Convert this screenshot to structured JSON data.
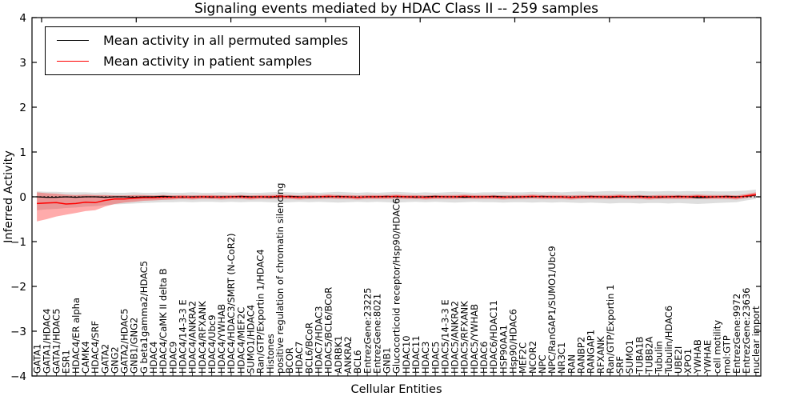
{
  "title": "Signaling events mediated by HDAC Class II -- 259 samples",
  "legend": {
    "items": [
      {
        "label": "Mean activity in all permuted samples",
        "color": "#000000"
      },
      {
        "label": "Mean activity in patient samples",
        "color": "#ff0000"
      }
    ]
  },
  "chart_data": {
    "type": "line",
    "title": "Signaling events mediated by HDAC Class II -- 259 samples",
    "xlabel": "Cellular Entities",
    "ylabel": "Inferred Activity",
    "ylim": [
      -4,
      4
    ],
    "yticks": [
      -4,
      -3,
      -2,
      -1,
      0,
      1,
      2,
      3,
      4
    ],
    "grid": false,
    "legend_position": "upper left",
    "zero_line": {
      "y": 0,
      "style": "dotted",
      "color": "#000000"
    },
    "categories": [
      "GATA1",
      "GATA1/HDAC4",
      "GATA1/HDAC5",
      "ESR1",
      "HDAC4/ER alpha",
      "CAMK4",
      "HDAC4/SRF",
      "GATA2",
      "GNG2",
      "GATA2/HDAC5",
      "GNB1/GNG2",
      "G beta1gamma2/HDAC5",
      "HDAC4",
      "HDAC4/CaMK II delta B",
      "HDAC9",
      "HDAC4/14-3-3 E",
      "HDAC4/ANKRA2",
      "HDAC4/RFXANK",
      "HDAC4/Ubc9",
      "HDAC4/YWHAB",
      "HDAC4/HDAC3/SMRT (N-CoR2)",
      "HDAC4/MEF2C",
      "SUMO1/HDAC4",
      "Ran/GTP/Exportin 1/HDAC4",
      "Histones",
      "positive regulation of chromatin silencing",
      "BCOR",
      "HDAC7",
      "BCL6/BCoR",
      "HDAC7/HDAC3",
      "HDAC5/BCL6/BCoR",
      "ADRBK1",
      "ANKRA2",
      "BCL6",
      "EntrezGene:23225",
      "EntrezGene:8021",
      "GNB1",
      "Glucocorticoid receptor/Hsp90/HDAC6",
      "HDAC10",
      "HDAC11",
      "HDAC3",
      "HDAC5",
      "HDAC5/14-3-3 E",
      "HDAC5/ANKRA2",
      "HDAC5/RFXANK",
      "HDAC5/YWHAB",
      "HDAC6",
      "HDAC6/HDAC11",
      "HSP90AA1",
      "Hsp90/HDAC6",
      "MEF2C",
      "NCOR2",
      "NPC",
      "NPC/RanGAP1/SUMO1/Ubc9",
      "NR3C1",
      "RAN",
      "RANBP2",
      "RANGAP1",
      "RFXANK",
      "Ran/GTP/Exportin 1",
      "SRF",
      "SUMO1",
      "TUBA1B",
      "TUBB2A",
      "Tubulin",
      "Tubulin/HDAC6",
      "UBE2I",
      "XPO1",
      "YWHAB",
      "YWHAE",
      "cell motility",
      "mol:GTP",
      "EntrezGene:9972",
      "EntrezGene:23636",
      "nuclear import"
    ],
    "series": [
      {
        "name": "Mean activity in all permuted samples",
        "color": "#000000",
        "values": [
          0.0,
          -0.01,
          -0.01,
          0.0,
          -0.01,
          0.0,
          0.0,
          -0.01,
          0.0,
          0.0,
          -0.01,
          0.0,
          0.0,
          0.01,
          0.0,
          -0.01,
          0.0,
          0.0,
          -0.01,
          0.0,
          0.0,
          0.01,
          0.0,
          0.0,
          -0.01,
          0.0,
          0.01,
          0.0,
          -0.01,
          0.0,
          0.0,
          0.01,
          0.0,
          -0.01,
          0.0,
          0.0,
          0.01,
          0.0,
          0.0,
          -0.01,
          0.0,
          0.01,
          0.0,
          0.0,
          -0.01,
          0.0,
          0.0,
          0.01,
          0.0,
          -0.01,
          0.0,
          0.0,
          0.01,
          0.0,
          0.0,
          -0.01,
          0.0,
          0.01,
          0.0,
          -0.01,
          0.0,
          0.0,
          0.01,
          0.0,
          -0.01,
          0.0,
          0.01,
          0.0,
          -0.02,
          -0.01,
          0.0,
          0.01,
          0.0,
          0.01,
          0.04
        ]
      },
      {
        "name": "Mean activity in patient samples",
        "color": "#ff0000",
        "values": [
          -0.15,
          -0.14,
          -0.13,
          -0.16,
          -0.15,
          -0.12,
          -0.13,
          -0.08,
          -0.05,
          -0.05,
          -0.03,
          -0.02,
          -0.02,
          -0.01,
          -0.01,
          0.0,
          -0.01,
          0.0,
          0.0,
          -0.01,
          0.0,
          0.0,
          -0.01,
          0.0,
          0.0,
          0.01,
          0.0,
          -0.01,
          0.0,
          0.0,
          0.01,
          0.0,
          0.0,
          -0.01,
          0.0,
          0.0,
          0.0,
          0.01,
          0.0,
          0.0,
          -0.01,
          0.0,
          0.0,
          0.0,
          0.01,
          0.0,
          0.0,
          0.0,
          -0.01,
          0.0,
          0.0,
          0.01,
          0.0,
          0.0,
          0.0,
          -0.01,
          0.0,
          0.0,
          0.0,
          0.0,
          0.01,
          0.0,
          0.0,
          -0.01,
          0.0,
          0.0,
          0.0,
          0.0,
          0.01,
          0.0,
          0.0,
          0.0,
          -0.01,
          0.02,
          0.05
        ]
      }
    ],
    "bands": [
      {
        "name": "permuted-std-band",
        "color": "#000000",
        "opacity": 0.13,
        "upper": [
          0.12,
          0.11,
          0.11,
          0.1,
          0.1,
          0.1,
          0.09,
          0.1,
          0.09,
          0.09,
          0.1,
          0.09,
          0.09,
          0.1,
          0.09,
          0.09,
          0.1,
          0.09,
          0.09,
          0.1,
          0.09,
          0.1,
          0.09,
          0.09,
          0.1,
          0.11,
          0.1,
          0.09,
          0.1,
          0.09,
          0.1,
          0.11,
          0.1,
          0.09,
          0.1,
          0.09,
          0.1,
          0.11,
          0.1,
          0.09,
          0.1,
          0.09,
          0.1,
          0.11,
          0.1,
          0.09,
          0.1,
          0.1,
          0.11,
          0.1,
          0.1,
          0.11,
          0.1,
          0.11,
          0.1,
          0.11,
          0.12,
          0.11,
          0.12,
          0.13,
          0.12,
          0.12,
          0.13,
          0.12,
          0.12,
          0.13,
          0.12,
          0.13,
          0.12,
          0.13,
          0.12,
          0.12,
          0.13,
          0.14,
          0.16
        ],
        "lower": [
          -0.3,
          -0.28,
          -0.27,
          -0.25,
          -0.24,
          -0.22,
          -0.21,
          -0.19,
          -0.17,
          -0.16,
          -0.15,
          -0.14,
          -0.13,
          -0.12,
          -0.12,
          -0.11,
          -0.12,
          -0.11,
          -0.11,
          -0.12,
          -0.11,
          -0.12,
          -0.11,
          -0.11,
          -0.12,
          -0.13,
          -0.12,
          -0.11,
          -0.12,
          -0.11,
          -0.12,
          -0.13,
          -0.12,
          -0.11,
          -0.12,
          -0.11,
          -0.12,
          -0.13,
          -0.12,
          -0.11,
          -0.12,
          -0.11,
          -0.12,
          -0.13,
          -0.12,
          -0.11,
          -0.12,
          -0.12,
          -0.13,
          -0.12,
          -0.12,
          -0.13,
          -0.12,
          -0.13,
          -0.12,
          -0.13,
          -0.14,
          -0.13,
          -0.14,
          -0.15,
          -0.14,
          -0.14,
          -0.15,
          -0.14,
          -0.14,
          -0.15,
          -0.14,
          -0.15,
          -0.16,
          -0.15,
          -0.14,
          -0.13,
          -0.12,
          -0.08,
          -0.05
        ]
      },
      {
        "name": "patient-std-band",
        "color": "#ff0000",
        "opacity": 0.33,
        "upper": [
          0.1,
          0.08,
          0.07,
          0.05,
          0.04,
          0.05,
          0.04,
          0.04,
          0.03,
          0.03,
          0.04,
          0.04,
          0.03,
          0.04,
          0.03,
          0.04,
          0.03,
          0.04,
          0.04,
          0.03,
          0.04,
          0.04,
          0.03,
          0.04,
          0.04,
          0.05,
          0.04,
          0.03,
          0.04,
          0.04,
          0.05,
          0.04,
          0.04,
          0.03,
          0.04,
          0.04,
          0.04,
          0.05,
          0.04,
          0.04,
          0.03,
          0.04,
          0.04,
          0.04,
          0.05,
          0.04,
          0.04,
          0.04,
          0.03,
          0.04,
          0.04,
          0.05,
          0.04,
          0.04,
          0.04,
          0.03,
          0.04,
          0.04,
          0.04,
          0.04,
          0.05,
          0.04,
          0.04,
          0.03,
          0.04,
          0.04,
          0.04,
          0.04,
          0.05,
          0.04,
          0.04,
          0.04,
          0.03,
          0.06,
          0.1
        ],
        "lower": [
          -0.55,
          -0.5,
          -0.44,
          -0.4,
          -0.36,
          -0.32,
          -0.3,
          -0.22,
          -0.16,
          -0.13,
          -0.11,
          -0.09,
          -0.08,
          -0.07,
          -0.06,
          -0.05,
          -0.06,
          -0.05,
          -0.05,
          -0.06,
          -0.05,
          -0.05,
          -0.06,
          -0.05,
          -0.05,
          -0.04,
          -0.05,
          -0.06,
          -0.05,
          -0.05,
          -0.04,
          -0.05,
          -0.05,
          -0.06,
          -0.05,
          -0.05,
          -0.05,
          -0.04,
          -0.05,
          -0.05,
          -0.06,
          -0.05,
          -0.05,
          -0.05,
          -0.04,
          -0.05,
          -0.05,
          -0.05,
          -0.06,
          -0.05,
          -0.05,
          -0.04,
          -0.05,
          -0.05,
          -0.05,
          -0.06,
          -0.05,
          -0.05,
          -0.05,
          -0.05,
          -0.04,
          -0.05,
          -0.05,
          -0.06,
          -0.05,
          -0.05,
          -0.05,
          -0.05,
          -0.04,
          -0.05,
          -0.05,
          -0.05,
          -0.06,
          -0.03,
          0.02
        ]
      }
    ]
  }
}
